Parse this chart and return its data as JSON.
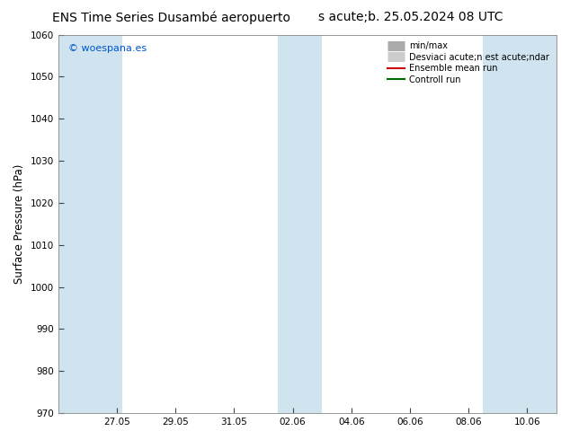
{
  "title_left": "ENS Time Series Dusambé aeropuerto",
  "title_right": "s acute;b. 25.05.2024 08 UTC",
  "ylabel": "Surface Pressure (hPa)",
  "ylim": [
    970,
    1060
  ],
  "yticks": [
    970,
    980,
    990,
    1000,
    1010,
    1020,
    1030,
    1040,
    1050,
    1060
  ],
  "xtick_labels": [
    "27.05",
    "29.05",
    "31.05",
    "02.06",
    "04.06",
    "06.06",
    "08.06",
    "10.06"
  ],
  "xtick_positions": [
    2,
    4,
    6,
    8,
    10,
    12,
    14,
    16
  ],
  "xlim": [
    0,
    17
  ],
  "watermark": "© woespana.es",
  "legend_entries": [
    "min/max",
    "Desviaci acute;n est acute;ndar",
    "Ensemble mean run",
    "Controll run"
  ],
  "legend_colors_patch": [
    "#c8dce8",
    "#dce8f0",
    "#ff0000",
    "#00aa00"
  ],
  "background_color": "#ffffff",
  "plot_bg_color": "#ffffff",
  "shaded_ranges": [
    [
      0,
      2.2
    ],
    [
      7.5,
      9.0
    ],
    [
      14.5,
      17
    ]
  ],
  "shaded_color": "#d0e4f0",
  "fig_width": 6.34,
  "fig_height": 4.9,
  "dpi": 100
}
